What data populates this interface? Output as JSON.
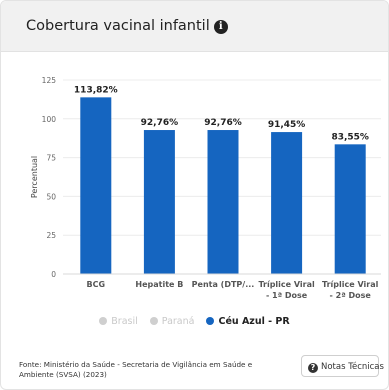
{
  "header": {
    "title": "Cobertura vacinal infantil",
    "info_icon": "info-icon",
    "info_glyph": "i"
  },
  "chart_data": {
    "type": "bar",
    "ylabel": "Percentual",
    "ylim": [
      0,
      125
    ],
    "yticks": [
      0,
      25,
      50,
      75,
      100,
      125
    ],
    "categories": [
      [
        "BCG"
      ],
      [
        "Hepatite B"
      ],
      [
        "Penta (DTP/..."
      ],
      [
        "Tríplice Viral",
        "- 1ª Dose"
      ],
      [
        "Tríplice Viral",
        "- 2ª Dose"
      ]
    ],
    "series": [
      {
        "name": "Céu Azul - PR",
        "color": "#1565c0",
        "values": [
          113.82,
          92.76,
          92.76,
          91.45,
          83.55
        ],
        "labels": [
          "113,82%",
          "92,76%",
          "92,76%",
          "91,45%",
          "83,55%"
        ]
      }
    ],
    "gridlines": true
  },
  "legend": {
    "items": [
      {
        "label": "Brasil",
        "color": "#cfcfcf",
        "active": false
      },
      {
        "label": "Paraná",
        "color": "#cfcfcf",
        "active": false
      },
      {
        "label": "Céu Azul - PR",
        "color": "#1565c0",
        "active": true
      }
    ]
  },
  "footer": {
    "source": "Fonte: Ministério da Saúde - Secretaria de Vigilância em Saúde e Ambiente (SVSA) (2023)",
    "notes_button": "Notas Técnicas",
    "notes_icon": "question-icon",
    "notes_glyph": "?"
  }
}
